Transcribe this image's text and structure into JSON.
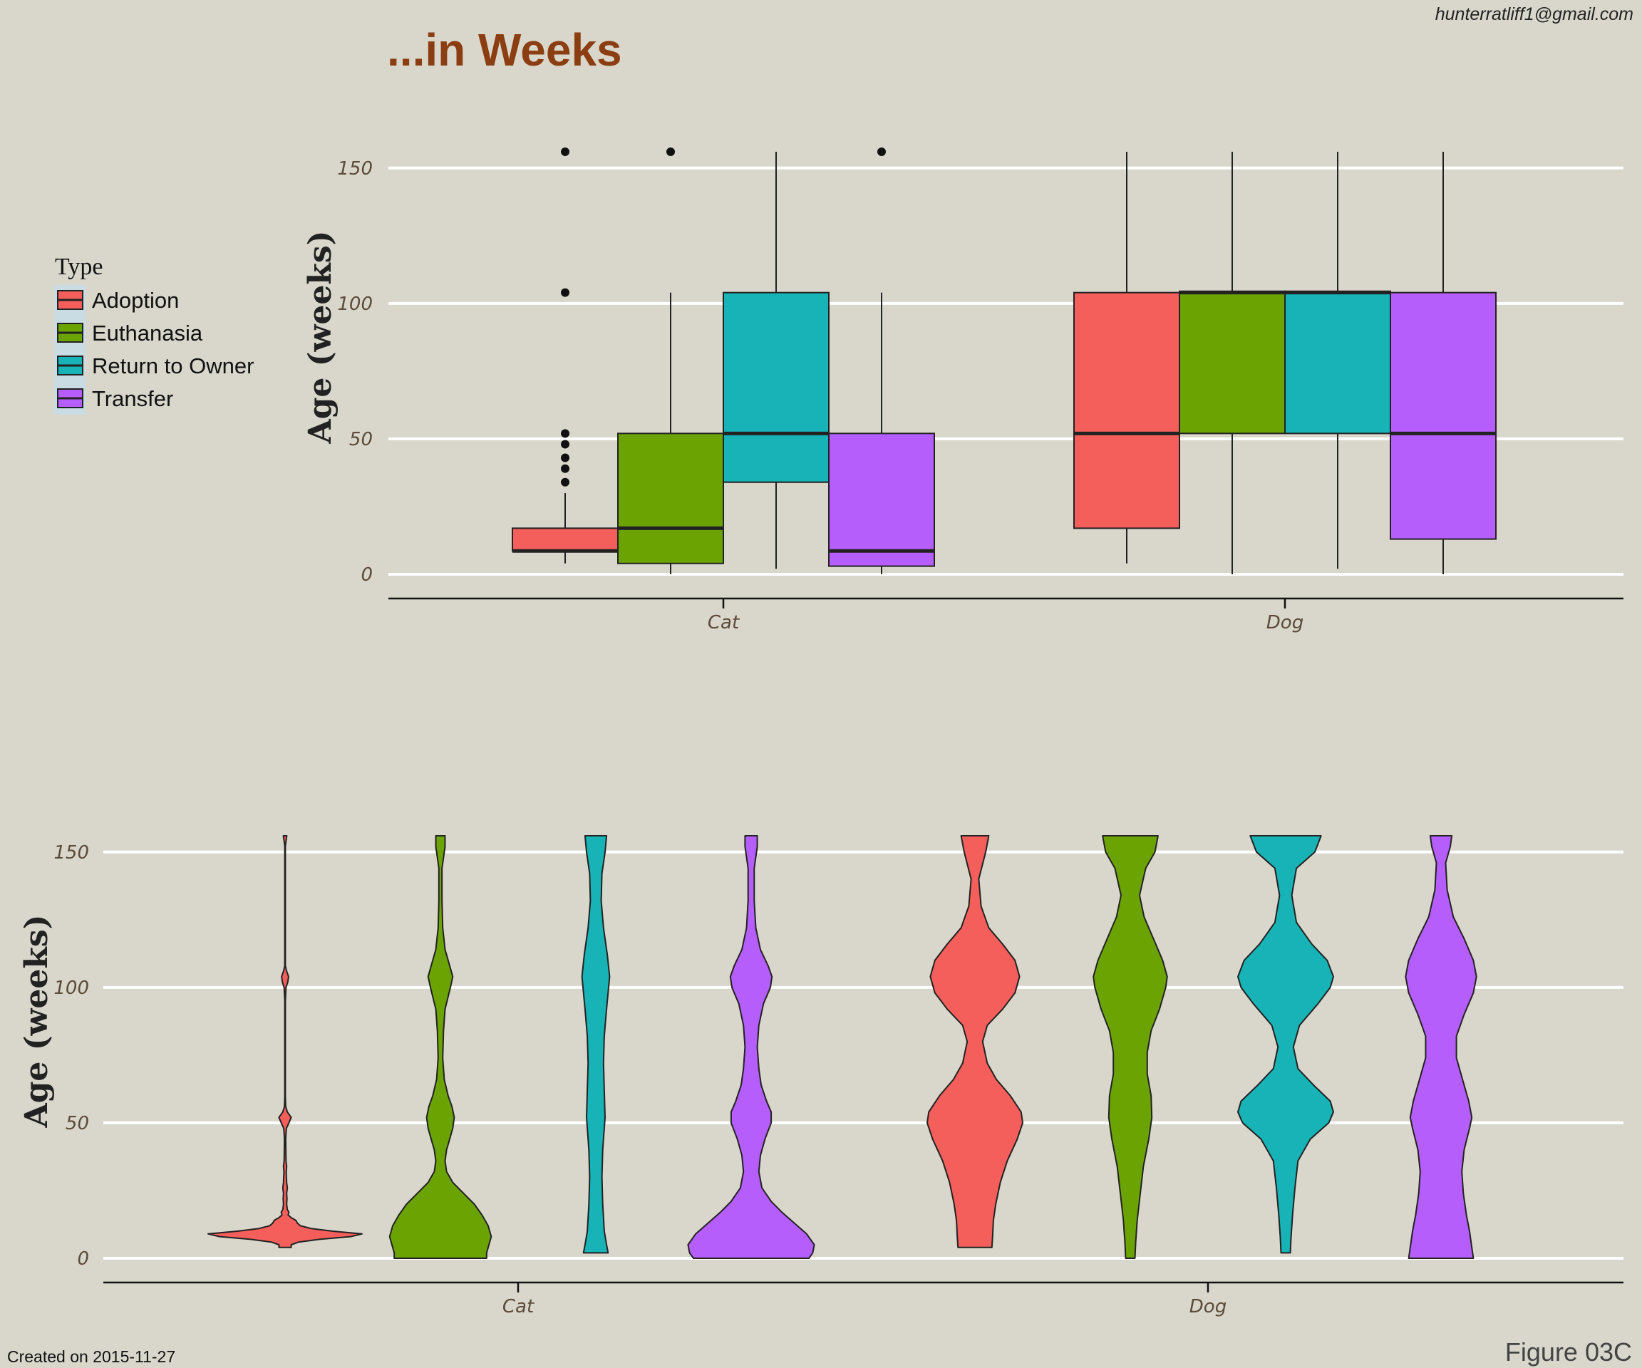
{
  "header": {
    "email": "hunterratliff1@gmail.com"
  },
  "footer": {
    "created": "Created on 2015-11-27",
    "figure": "Figure 03C"
  },
  "legend": {
    "title": "Type",
    "items": [
      {
        "label": "Adoption",
        "color": "#F45F5B"
      },
      {
        "label": "Euthanasia",
        "color": "#6BA302"
      },
      {
        "label": "Return to Owner",
        "color": "#17B3B7"
      },
      {
        "label": "Transfer",
        "color": "#B55EFC"
      }
    ]
  },
  "chart_data": [
    {
      "type": "boxplot",
      "title": "...in Weeks",
      "ylabel": "Age (weeks)",
      "xlabel": "",
      "ylim": [
        0,
        156
      ],
      "yticks": [
        0,
        50,
        100,
        150
      ],
      "categories": [
        "Cat",
        "Dog"
      ],
      "series": [
        {
          "name": "Adoption",
          "color": "#F45F5B",
          "boxes": [
            {
              "category": "Cat",
              "min": 4,
              "q1": 8.6,
              "median": 8.6,
              "q3": 17,
              "max": 30,
              "outliers": [
                34,
                39,
                43,
                48,
                52,
                104,
                156
              ]
            },
            {
              "category": "Dog",
              "min": 4,
              "q1": 17,
              "median": 52,
              "q3": 104,
              "max": 156,
              "outliers": []
            }
          ]
        },
        {
          "name": "Euthanasia",
          "color": "#6BA302",
          "boxes": [
            {
              "category": "Cat",
              "min": 0,
              "q1": 4,
              "median": 17,
              "q3": 52,
              "max": 104,
              "outliers": [
                156
              ]
            },
            {
              "category": "Dog",
              "min": 0,
              "q1": 52,
              "median": 104,
              "q3": 104.5,
              "max": 156,
              "outliers": []
            }
          ]
        },
        {
          "name": "Return to Owner",
          "color": "#17B3B7",
          "boxes": [
            {
              "category": "Cat",
              "min": 2,
              "q1": 34,
              "median": 52,
              "q3": 104,
              "max": 156,
              "outliers": []
            },
            {
              "category": "Dog",
              "min": 2,
              "q1": 52,
              "median": 104,
              "q3": 104.5,
              "max": 156,
              "outliers": []
            }
          ]
        },
        {
          "name": "Transfer",
          "color": "#B55EFC",
          "boxes": [
            {
              "category": "Cat",
              "min": 0,
              "q1": 3,
              "median": 8.6,
              "q3": 52,
              "max": 104,
              "outliers": [
                156
              ]
            },
            {
              "category": "Dog",
              "min": 0,
              "q1": 13,
              "median": 52,
              "q3": 104,
              "max": 156,
              "outliers": []
            }
          ]
        }
      ]
    },
    {
      "type": "violin",
      "title": "",
      "ylabel": "Age (weeks)",
      "xlabel": "",
      "ylim": [
        0,
        156
      ],
      "yticks": [
        0,
        50,
        100,
        150
      ],
      "categories": [
        "Cat",
        "Dog"
      ],
      "violins": [
        {
          "category": "Cat",
          "type": "Adoption",
          "color": "#F45F5B",
          "min": 4,
          "max": 156,
          "density": [
            [
              4,
              0.08
            ],
            [
              5,
              0.08
            ],
            [
              6,
              0.18
            ],
            [
              7,
              0.45
            ],
            [
              8,
              0.85
            ],
            [
              9,
              1.0
            ],
            [
              10,
              0.62
            ],
            [
              11,
              0.34
            ],
            [
              12,
              0.2
            ],
            [
              13,
              0.16
            ],
            [
              14,
              0.14
            ],
            [
              15,
              0.08
            ],
            [
              16,
              0.04
            ],
            [
              17,
              0.05
            ],
            [
              18,
              0.03
            ],
            [
              20,
              0.02
            ],
            [
              22,
              0.025
            ],
            [
              24,
              0.02
            ],
            [
              26,
              0.03
            ],
            [
              28,
              0.02
            ],
            [
              30,
              0.018
            ],
            [
              32,
              0.015
            ],
            [
              34,
              0.02
            ],
            [
              36,
              0.012
            ],
            [
              40,
              0.01
            ],
            [
              44,
              0.008
            ],
            [
              46,
              0.012
            ],
            [
              48,
              0.018
            ],
            [
              50,
              0.05
            ],
            [
              52,
              0.08
            ],
            [
              54,
              0.03
            ],
            [
              56,
              0.008
            ],
            [
              60,
              0.004
            ],
            [
              70,
              0.004
            ],
            [
              80,
              0.004
            ],
            [
              95,
              0.004
            ],
            [
              100,
              0.012
            ],
            [
              102,
              0.035
            ],
            [
              104,
              0.045
            ],
            [
              106,
              0.02
            ],
            [
              108,
              0.004
            ],
            [
              120,
              0.004
            ],
            [
              140,
              0.004
            ],
            [
              152,
              0.004
            ],
            [
              154,
              0.012
            ],
            [
              156,
              0.022
            ]
          ]
        },
        {
          "category": "Cat",
          "type": "Euthanasia",
          "color": "#6BA302",
          "min": 0,
          "max": 156,
          "density": [
            [
              0,
              0.6
            ],
            [
              2,
              0.6
            ],
            [
              4,
              0.62
            ],
            [
              8,
              0.66
            ],
            [
              12,
              0.62
            ],
            [
              16,
              0.54
            ],
            [
              20,
              0.44
            ],
            [
              24,
              0.3
            ],
            [
              28,
              0.16
            ],
            [
              32,
              0.08
            ],
            [
              36,
              0.06
            ],
            [
              40,
              0.08
            ],
            [
              44,
              0.12
            ],
            [
              48,
              0.16
            ],
            [
              52,
              0.18
            ],
            [
              56,
              0.15
            ],
            [
              60,
              0.1
            ],
            [
              66,
              0.05
            ],
            [
              74,
              0.03
            ],
            [
              84,
              0.04
            ],
            [
              92,
              0.06
            ],
            [
              100,
              0.13
            ],
            [
              104,
              0.16
            ],
            [
              108,
              0.12
            ],
            [
              114,
              0.06
            ],
            [
              122,
              0.03
            ],
            [
              132,
              0.02
            ],
            [
              144,
              0.02
            ],
            [
              152,
              0.06
            ],
            [
              156,
              0.06
            ]
          ]
        },
        {
          "category": "Cat",
          "type": "Return to Owner",
          "color": "#17B3B7",
          "min": 2,
          "max": 156,
          "density": [
            [
              2,
              0.16
            ],
            [
              5,
              0.14
            ],
            [
              10,
              0.11
            ],
            [
              20,
              0.09
            ],
            [
              30,
              0.08
            ],
            [
              40,
              0.09
            ],
            [
              52,
              0.12
            ],
            [
              62,
              0.11
            ],
            [
              72,
              0.1
            ],
            [
              82,
              0.11
            ],
            [
              92,
              0.14
            ],
            [
              104,
              0.18
            ],
            [
              112,
              0.15
            ],
            [
              122,
              0.1
            ],
            [
              132,
              0.07
            ],
            [
              142,
              0.08
            ],
            [
              150,
              0.12
            ],
            [
              156,
              0.14
            ]
          ]
        },
        {
          "category": "Cat",
          "type": "Transfer",
          "color": "#B55EFC",
          "min": 0,
          "max": 156,
          "density": [
            [
              0,
              0.75
            ],
            [
              2,
              0.8
            ],
            [
              5,
              0.82
            ],
            [
              9,
              0.72
            ],
            [
              13,
              0.56
            ],
            [
              17,
              0.4
            ],
            [
              21,
              0.26
            ],
            [
              26,
              0.14
            ],
            [
              32,
              0.1
            ],
            [
              38,
              0.12
            ],
            [
              44,
              0.18
            ],
            [
              50,
              0.26
            ],
            [
              54,
              0.26
            ],
            [
              58,
              0.2
            ],
            [
              64,
              0.13
            ],
            [
              70,
              0.1
            ],
            [
              78,
              0.08
            ],
            [
              86,
              0.1
            ],
            [
              94,
              0.16
            ],
            [
              100,
              0.25
            ],
            [
              104,
              0.27
            ],
            [
              108,
              0.22
            ],
            [
              114,
              0.12
            ],
            [
              122,
              0.06
            ],
            [
              132,
              0.04
            ],
            [
              144,
              0.04
            ],
            [
              152,
              0.08
            ],
            [
              156,
              0.08
            ]
          ]
        },
        {
          "category": "Dog",
          "type": "Adoption",
          "color": "#F45F5B",
          "min": 4,
          "max": 156,
          "density": [
            [
              4,
              0.22
            ],
            [
              8,
              0.23
            ],
            [
              14,
              0.24
            ],
            [
              20,
              0.27
            ],
            [
              28,
              0.33
            ],
            [
              36,
              0.42
            ],
            [
              44,
              0.55
            ],
            [
              50,
              0.62
            ],
            [
              54,
              0.6
            ],
            [
              60,
              0.46
            ],
            [
              66,
              0.28
            ],
            [
              72,
              0.16
            ],
            [
              80,
              0.1
            ],
            [
              86,
              0.16
            ],
            [
              92,
              0.36
            ],
            [
              98,
              0.52
            ],
            [
              104,
              0.58
            ],
            [
              110,
              0.52
            ],
            [
              116,
              0.36
            ],
            [
              122,
              0.18
            ],
            [
              130,
              0.08
            ],
            [
              140,
              0.05
            ],
            [
              150,
              0.14
            ],
            [
              156,
              0.18
            ]
          ]
        },
        {
          "category": "Dog",
          "type": "Euthanasia",
          "color": "#6BA302",
          "min": 0,
          "max": 156,
          "density": [
            [
              0,
              0.06
            ],
            [
              6,
              0.07
            ],
            [
              14,
              0.09
            ],
            [
              24,
              0.13
            ],
            [
              34,
              0.17
            ],
            [
              44,
              0.24
            ],
            [
              52,
              0.28
            ],
            [
              60,
              0.27
            ],
            [
              68,
              0.22
            ],
            [
              76,
              0.22
            ],
            [
              84,
              0.27
            ],
            [
              92,
              0.38
            ],
            [
              100,
              0.46
            ],
            [
              104,
              0.48
            ],
            [
              110,
              0.42
            ],
            [
              118,
              0.3
            ],
            [
              126,
              0.18
            ],
            [
              134,
              0.12
            ],
            [
              144,
              0.2
            ],
            [
              150,
              0.32
            ],
            [
              156,
              0.36
            ]
          ]
        },
        {
          "category": "Dog",
          "type": "Return to Owner",
          "color": "#17B3B7",
          "min": 2,
          "max": 156,
          "density": [
            [
              2,
              0.06
            ],
            [
              8,
              0.07
            ],
            [
              16,
              0.09
            ],
            [
              26,
              0.12
            ],
            [
              36,
              0.16
            ],
            [
              44,
              0.32
            ],
            [
              50,
              0.56
            ],
            [
              54,
              0.62
            ],
            [
              58,
              0.58
            ],
            [
              64,
              0.36
            ],
            [
              70,
              0.16
            ],
            [
              78,
              0.1
            ],
            [
              86,
              0.18
            ],
            [
              94,
              0.42
            ],
            [
              100,
              0.58
            ],
            [
              104,
              0.62
            ],
            [
              110,
              0.54
            ],
            [
              116,
              0.34
            ],
            [
              124,
              0.14
            ],
            [
              134,
              0.08
            ],
            [
              144,
              0.14
            ],
            [
              150,
              0.38
            ],
            [
              156,
              0.46
            ]
          ]
        },
        {
          "category": "Dog",
          "type": "Transfer",
          "color": "#B55EFC",
          "min": 0,
          "max": 156,
          "density": [
            [
              0,
              0.42
            ],
            [
              4,
              0.4
            ],
            [
              10,
              0.37
            ],
            [
              16,
              0.33
            ],
            [
              24,
              0.29
            ],
            [
              32,
              0.27
            ],
            [
              40,
              0.3
            ],
            [
              48,
              0.37
            ],
            [
              52,
              0.4
            ],
            [
              58,
              0.36
            ],
            [
              66,
              0.28
            ],
            [
              74,
              0.2
            ],
            [
              82,
              0.2
            ],
            [
              90,
              0.3
            ],
            [
              98,
              0.42
            ],
            [
              104,
              0.46
            ],
            [
              110,
              0.42
            ],
            [
              118,
              0.3
            ],
            [
              126,
              0.16
            ],
            [
              136,
              0.08
            ],
            [
              146,
              0.06
            ],
            [
              152,
              0.12
            ],
            [
              156,
              0.14
            ]
          ]
        }
      ]
    }
  ]
}
